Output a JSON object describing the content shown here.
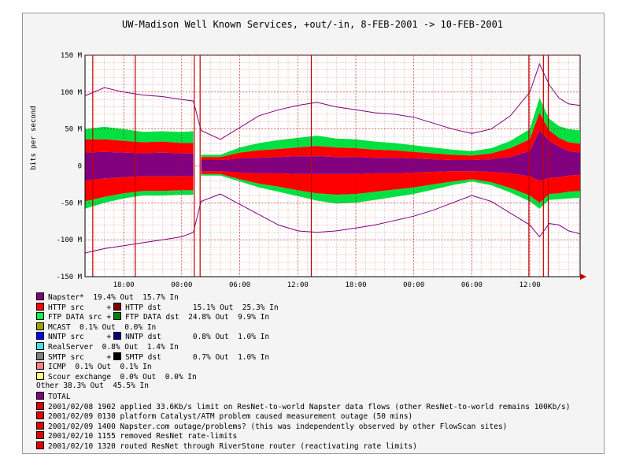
{
  "chart_data": {
    "type": "area",
    "title": "UW-Madison Well Known Services, +out/-in, 8-FEB-2001 -> 10-FEB-2001",
    "ylabel": "bits per second",
    "ylim": [
      -150,
      150
    ],
    "y_ticks": [
      {
        "v": 150,
        "label": "150 M"
      },
      {
        "v": 100,
        "label": "100 M"
      },
      {
        "v": 50,
        "label": "50 M"
      },
      {
        "v": 0,
        "label": "0"
      },
      {
        "v": -50,
        "label": "-50 M"
      },
      {
        "v": -100,
        "label": "-100 M"
      },
      {
        "v": -150,
        "label": "-150 M"
      }
    ],
    "x_ticks": [
      "18:00",
      "00:00",
      "06:00",
      "12:00",
      "18:00",
      "00:00",
      "06:00",
      "12:00"
    ],
    "x_hours": [
      18,
      24,
      30,
      36,
      42,
      48,
      54,
      60
    ],
    "x_range_hours": [
      14,
      65.2
    ],
    "vertical_markers_hours": [
      14.8,
      19.2,
      25.3,
      25.9,
      37.4,
      59.9,
      61.4,
      61.9
    ],
    "outage_hours": [
      25.2,
      26.0
    ],
    "series": [
      {
        "name": "Napster*",
        "color": "#800080",
        "out_pct": "19.4%",
        "in_pct": "15.7%"
      },
      {
        "name": "HTTP src",
        "color": "#ff0000",
        "out_pct": "15.1%",
        "in_pct": "25.3%"
      },
      {
        "name": "FTP DATA src",
        "color": "#00ff40",
        "out_pct": "24.8%",
        "in_pct": "9.9%"
      },
      {
        "name": "NNTP src",
        "color": "#0000ff",
        "out_pct": "0.8%",
        "in_pct": "1.0%"
      },
      {
        "name": "SMTP src",
        "color": "#000000",
        "out_pct": "0.7%",
        "in_pct": "1.0%"
      }
    ],
    "samples": [
      {
        "h": 14.0,
        "nap": 18,
        "red": 18,
        "grn": 14,
        "tot": 95,
        "nin": -20,
        "rin": -28,
        "gin": -10,
        "tin": -118
      },
      {
        "h": 16.0,
        "nap": 19,
        "red": 17,
        "grn": 17,
        "tot": 106,
        "nin": -17,
        "rin": -25,
        "gin": -8,
        "tin": -112
      },
      {
        "h": 18.0,
        "nap": 18,
        "red": 16,
        "grn": 16,
        "tot": 100,
        "nin": -15,
        "rin": -22,
        "gin": -7,
        "tin": -108
      },
      {
        "h": 20.0,
        "nap": 17,
        "red": 15,
        "grn": 14,
        "tot": 96,
        "nin": -14,
        "rin": -20,
        "gin": -6,
        "tin": -104
      },
      {
        "h": 22.0,
        "nap": 18,
        "red": 15,
        "grn": 14,
        "tot": 94,
        "nin": -14,
        "rin": -20,
        "gin": -6,
        "tin": -100
      },
      {
        "h": 24.0,
        "nap": 17,
        "red": 14,
        "grn": 15,
        "tot": 90,
        "nin": -14,
        "rin": -19,
        "gin": -6,
        "tin": -96
      },
      {
        "h": 25.2,
        "nap": 17,
        "red": 14,
        "grn": 16,
        "tot": 88,
        "nin": -14,
        "rin": -19,
        "gin": -6,
        "tin": -90
      },
      {
        "h": 26.0,
        "nap": 8,
        "red": 4,
        "grn": 3,
        "tot": 48,
        "nin": -7,
        "rin": -4,
        "gin": -2,
        "tin": -48
      },
      {
        "h": 28.0,
        "nap": 8,
        "red": 4,
        "grn": 3,
        "tot": 36,
        "nin": -7,
        "rin": -4,
        "gin": -2,
        "tin": -38
      },
      {
        "h": 30.0,
        "nap": 10,
        "red": 8,
        "grn": 7,
        "tot": 52,
        "nin": -9,
        "rin": -9,
        "gin": -3,
        "tin": -52
      },
      {
        "h": 32.0,
        "nap": 11,
        "red": 10,
        "grn": 10,
        "tot": 68,
        "nin": -10,
        "rin": -14,
        "gin": -5,
        "tin": -66
      },
      {
        "h": 34.0,
        "nap": 12,
        "red": 11,
        "grn": 12,
        "tot": 76,
        "nin": -10,
        "rin": -18,
        "gin": -7,
        "tin": -80
      },
      {
        "h": 36.0,
        "nap": 13,
        "red": 12,
        "grn": 13,
        "tot": 82,
        "nin": -11,
        "rin": -22,
        "gin": -8,
        "tin": -88
      },
      {
        "h": 38.0,
        "nap": 13,
        "red": 14,
        "grn": 14,
        "tot": 86,
        "nin": -11,
        "rin": -26,
        "gin": -10,
        "tin": -90
      },
      {
        "h": 40.0,
        "nap": 12,
        "red": 13,
        "grn": 12,
        "tot": 80,
        "nin": -11,
        "rin": -28,
        "gin": -12,
        "tin": -88
      },
      {
        "h": 42.0,
        "nap": 12,
        "red": 12,
        "grn": 12,
        "tot": 76,
        "nin": -11,
        "rin": -27,
        "gin": -12,
        "tin": -84
      },
      {
        "h": 44.0,
        "nap": 11,
        "red": 11,
        "grn": 11,
        "tot": 72,
        "nin": -10,
        "rin": -25,
        "gin": -11,
        "tin": -80
      },
      {
        "h": 46.0,
        "nap": 11,
        "red": 10,
        "grn": 10,
        "tot": 70,
        "nin": -10,
        "rin": -22,
        "gin": -10,
        "tin": -74
      },
      {
        "h": 48.0,
        "nap": 10,
        "red": 9,
        "grn": 9,
        "tot": 66,
        "nin": -9,
        "rin": -20,
        "gin": -9,
        "tin": -68
      },
      {
        "h": 50.0,
        "nap": 9,
        "red": 8,
        "grn": 8,
        "tot": 58,
        "nin": -8,
        "rin": -17,
        "gin": -7,
        "tin": -60
      },
      {
        "h": 52.0,
        "nap": 8,
        "red": 7,
        "grn": 7,
        "tot": 50,
        "nin": -7,
        "rin": -14,
        "gin": -5,
        "tin": -50
      },
      {
        "h": 54.0,
        "nap": 8,
        "red": 6,
        "grn": 6,
        "tot": 44,
        "nin": -7,
        "rin": -11,
        "gin": -3,
        "tin": -40
      },
      {
        "h": 56.0,
        "nap": 9,
        "red": 8,
        "grn": 7,
        "tot": 50,
        "nin": -8,
        "rin": -14,
        "gin": -4,
        "tin": -48
      },
      {
        "h": 58.0,
        "nap": 12,
        "red": 12,
        "grn": 10,
        "tot": 68,
        "nin": -10,
        "rin": -20,
        "gin": -6,
        "tin": -64
      },
      {
        "h": 60.0,
        "nap": 20,
        "red": 16,
        "grn": 14,
        "tot": 100,
        "nin": -14,
        "rin": -26,
        "gin": -8,
        "tin": -80
      },
      {
        "h": 61.0,
        "nap": 48,
        "red": 24,
        "grn": 20,
        "tot": 138,
        "nin": -20,
        "rin": -30,
        "gin": -8,
        "tin": -96
      },
      {
        "h": 62.0,
        "nap": 34,
        "red": 14,
        "grn": 16,
        "tot": 110,
        "nin": -16,
        "rin": -22,
        "gin": -8,
        "tin": -78
      },
      {
        "h": 63.0,
        "nap": 26,
        "red": 12,
        "grn": 16,
        "tot": 92,
        "nin": -15,
        "rin": -22,
        "gin": -8,
        "tin": -80
      },
      {
        "h": 64.0,
        "nap": 20,
        "red": 12,
        "grn": 18,
        "tot": 84,
        "nin": -13,
        "rin": -22,
        "gin": -9,
        "tin": -88
      },
      {
        "h": 65.2,
        "nap": 18,
        "red": 12,
        "grn": 18,
        "tot": 82,
        "nin": -12,
        "rin": -22,
        "gin": -9,
        "tin": -92
      }
    ],
    "grid": true
  },
  "legend": {
    "rows": [
      {
        "type": "single",
        "color": "#800080",
        "text": "Napster*  19.4% Out  15.7% In"
      },
      {
        "type": "pair",
        "color": "#ff0000",
        "color2": "#800000",
        "text1": "HTTP src     +",
        "text2": "HTTP dst       15.1% Out  25.3% In"
      },
      {
        "type": "pair",
        "color": "#00ff40",
        "color2": "#008000",
        "text1": "FTP DATA src +",
        "text2": "FTP DATA dst  24.8% Out  9.9% In"
      },
      {
        "type": "single",
        "color": "#a0a000",
        "text": "MCAST  0.1% Out  0.0% In"
      },
      {
        "type": "pair",
        "color": "#0000ff",
        "color2": "#000080",
        "text1": "NNTP src     +",
        "text2": "NNTP dst       0.8% Out  1.0% In"
      },
      {
        "type": "single",
        "color": "#40e0e0",
        "text": "RealServer  0.8% Out  1.4% In"
      },
      {
        "type": "pair",
        "color": "#808080",
        "color2": "#000000",
        "text1": "SMTP src     +",
        "text2": "SMTP dst       0.7% Out  1.0% In"
      },
      {
        "type": "single",
        "color": "#ff8080",
        "text": "ICMP  0.1% Out  0.1% In"
      },
      {
        "type": "single",
        "color": "#ffff80",
        "text": "Scour exchange  0.0% Out  0.0% In"
      },
      {
        "type": "text",
        "text": "Other 38.3% Out  45.5% In"
      },
      {
        "type": "single",
        "color": "#800080",
        "text": "TOTAL"
      },
      {
        "type": "single",
        "color": "#e00000",
        "text": "2001/02/08 1902 applied 33.6Kb/s limit on ResNet-to-world Napster data flows (other ResNet-to-world remains 100Kb/s)"
      },
      {
        "type": "single",
        "color": "#e00000",
        "text": "2001/02/09 0130 platform Catalyst/ATM problem caused measurement outage (50 mins)"
      },
      {
        "type": "single",
        "color": "#e00000",
        "text": "2001/02/09 1400 Napster.com outage/problems? (this was independently observed by other FlowScan sites)"
      },
      {
        "type": "single",
        "color": "#e00000",
        "text": "2001/02/10 1155 removed ResNet rate-limits"
      },
      {
        "type": "single",
        "color": "#e00000",
        "text": "2001/02/10 1320 routed ResNet through RiverStone router (reactivating rate limits)"
      }
    ]
  }
}
